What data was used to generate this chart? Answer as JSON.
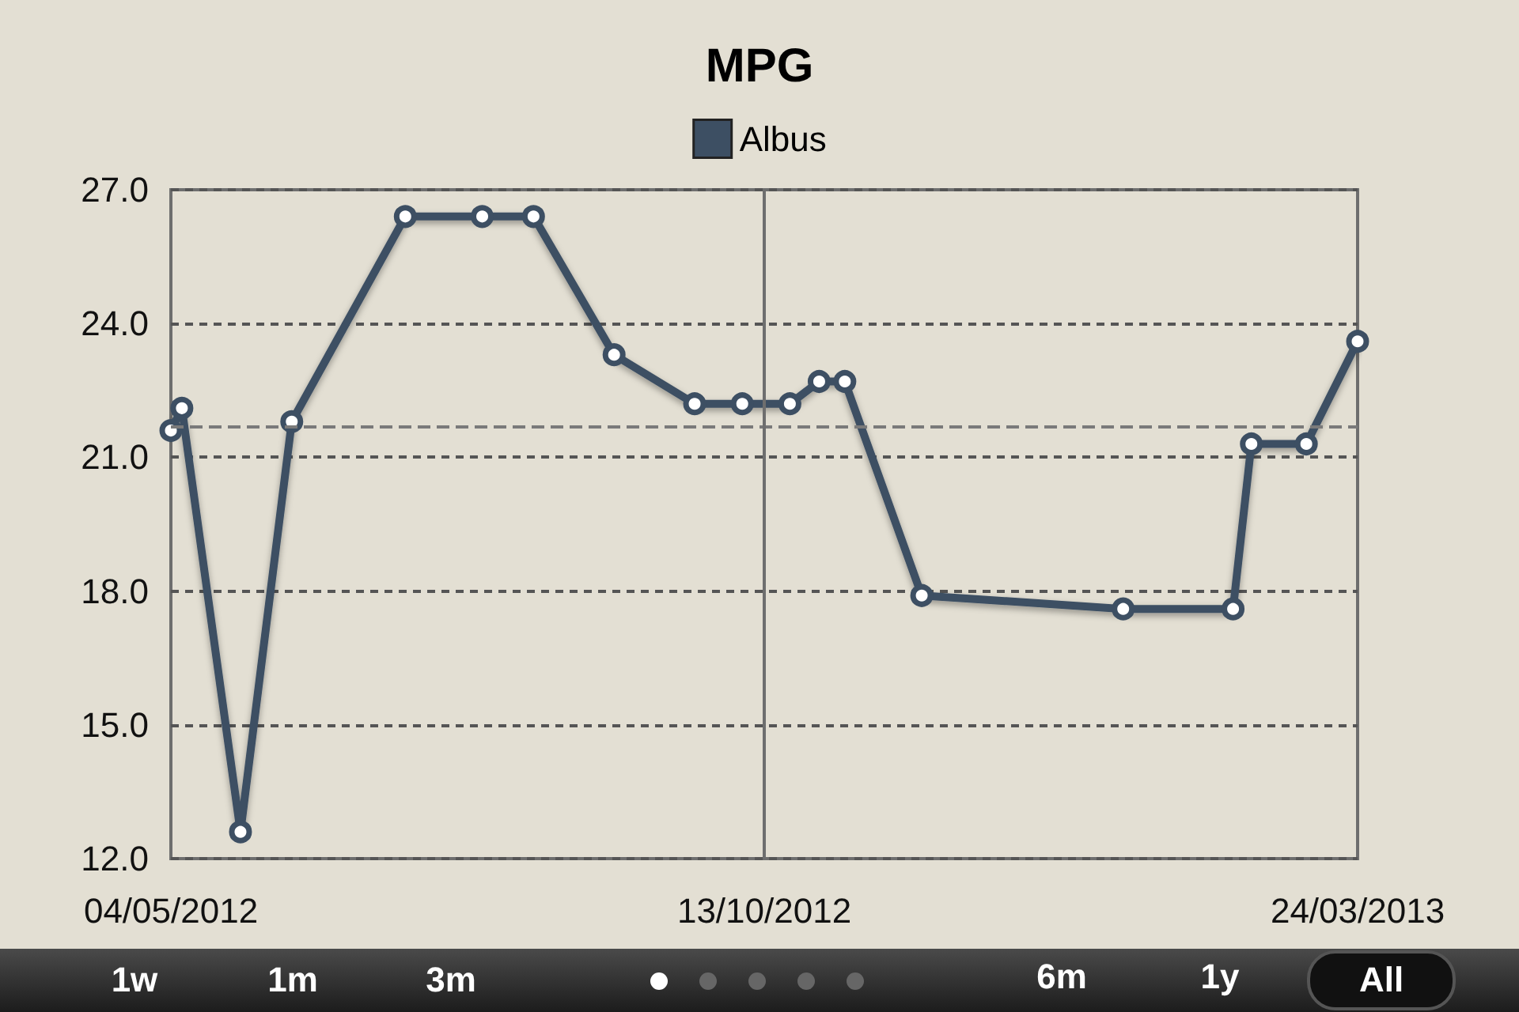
{
  "chart_data": {
    "type": "line",
    "title": "MPG",
    "x": [
      "2012-05-04",
      "2012-05-07",
      "2012-05-23",
      "2012-06-06",
      "2012-07-07",
      "2012-07-28",
      "2012-08-11",
      "2012-09-02",
      "2012-09-24",
      "2012-10-07",
      "2012-10-20",
      "2012-10-28",
      "2012-11-04",
      "2012-11-25",
      "2013-01-19",
      "2013-02-18",
      "2013-02-23",
      "2013-03-10",
      "2013-03-24"
    ],
    "series": [
      {
        "name": "Albus",
        "color": "#3d4f63",
        "values": [
          21.6,
          22.1,
          12.6,
          21.8,
          26.4,
          26.4,
          26.4,
          23.3,
          22.2,
          22.2,
          22.2,
          22.7,
          22.7,
          17.9,
          17.6,
          17.6,
          21.3,
          21.3,
          23.6
        ]
      }
    ],
    "xlim": [
      "2012-05-04",
      "2013-03-24"
    ],
    "xticks": [
      {
        "value": "2012-05-04",
        "label": "04/05/2012"
      },
      {
        "value": "2012-10-13",
        "label": "13/10/2012"
      },
      {
        "value": "2013-03-24",
        "label": "24/03/2013"
      }
    ],
    "ylim": [
      12,
      27
    ],
    "yticks": [
      {
        "value": 12,
        "label": "12.0"
      },
      {
        "value": 15,
        "label": "15.0"
      },
      {
        "value": 18,
        "label": "18.0"
      },
      {
        "value": 21,
        "label": "21.0"
      },
      {
        "value": 24,
        "label": "24.0"
      },
      {
        "value": 27,
        "label": "27.0"
      }
    ],
    "ref_lines": [
      {
        "axis": "y",
        "value": 21.7,
        "color": "#7a7a7a",
        "line_style": "dashed"
      },
      {
        "axis": "x",
        "value": "2012-10-13",
        "color": "#6e6e6e",
        "line_style": "solid"
      }
    ],
    "grid": "y",
    "legend": "top",
    "marker": "circle",
    "line_style": "solid",
    "annotations": [
      "1w",
      "1m",
      "3m",
      "6m",
      "1y",
      "All"
    ]
  }
}
